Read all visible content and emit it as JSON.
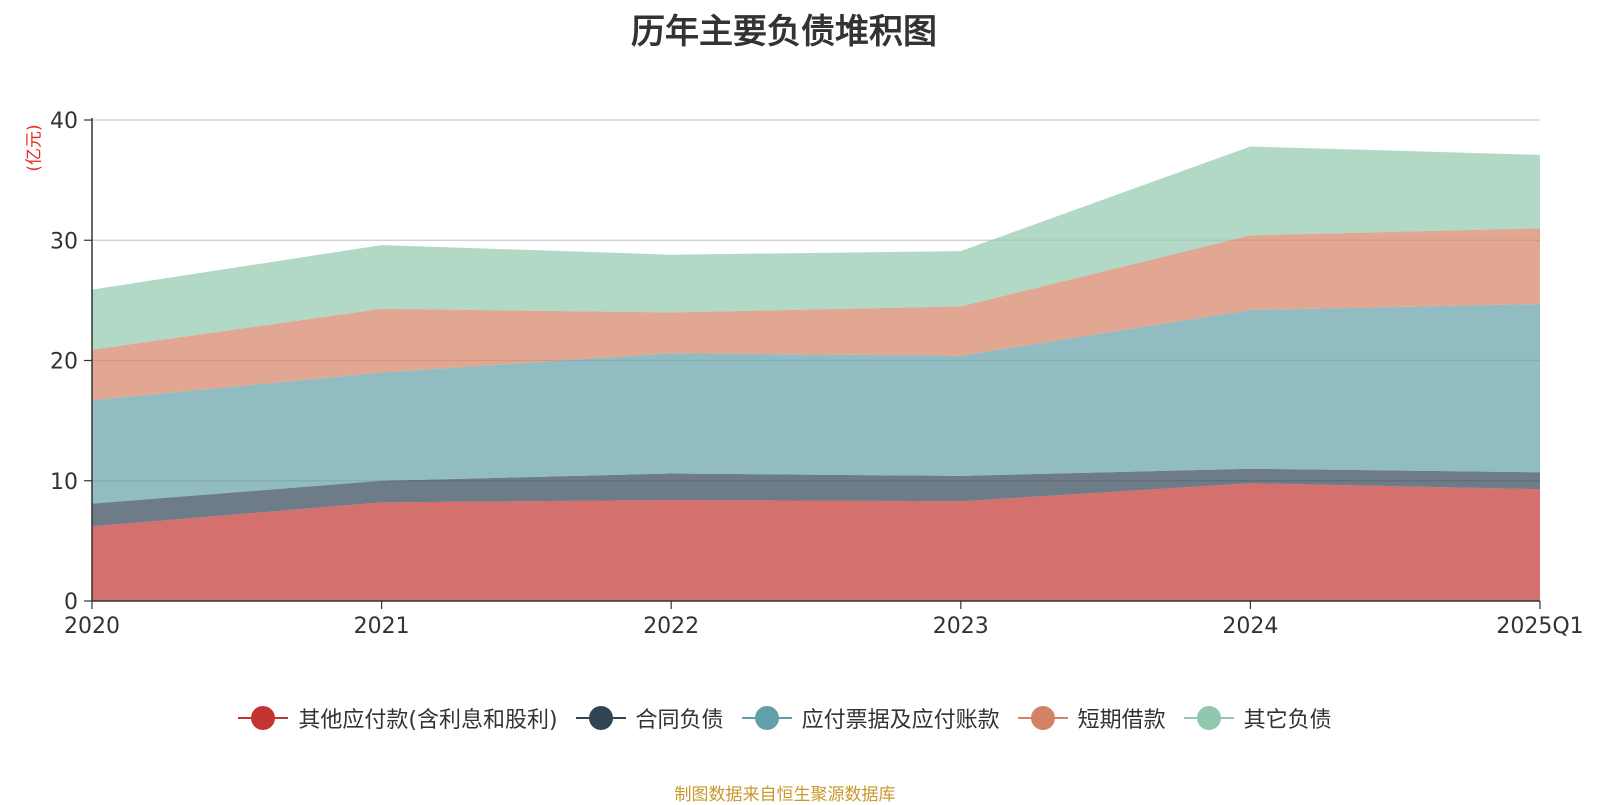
{
  "title": "历年主要负债堆积图",
  "unit_label": "(亿元)",
  "footer": "制图数据来自恒生聚源数据库",
  "colors": {
    "other_payables": "#c23531",
    "contract_liabilities": "#2f4554",
    "notes_accounts_payable": "#61a0a8",
    "short_term_loans": "#d48265",
    "other_liabilities": "#91c7ae"
  },
  "legend": [
    {
      "label": "其他应付款(含利息和股利)",
      "color": "#c23531"
    },
    {
      "label": "合同负债",
      "color": "#2f4554"
    },
    {
      "label": "应付票据及应付账款",
      "color": "#61a0a8"
    },
    {
      "label": "短期借款",
      "color": "#d48265"
    },
    {
      "label": "其它负债",
      "color": "#91c7ae"
    }
  ],
  "chart_data": {
    "type": "area",
    "stacked": true,
    "title": "历年主要负债堆积图",
    "ylabel": "(亿元)",
    "categories": [
      "2020",
      "2021",
      "2022",
      "2023",
      "2024",
      "2025Q1"
    ],
    "ylim": [
      0,
      40
    ],
    "yticks": [
      0,
      10,
      20,
      30,
      40
    ],
    "grid": true,
    "legend_position": "bottom",
    "series": [
      {
        "name": "其他应付款(含利息和股利)",
        "color": "#c23531",
        "values": [
          6.2,
          8.2,
          8.4,
          8.3,
          9.8,
          9.3
        ]
      },
      {
        "name": "合同负债",
        "color": "#2f4554",
        "values": [
          1.9,
          1.8,
          2.2,
          2.1,
          1.2,
          1.4
        ]
      },
      {
        "name": "应付票据及应付账款",
        "color": "#61a0a8",
        "values": [
          8.6,
          9.0,
          10.0,
          10.0,
          13.2,
          14.0
        ]
      },
      {
        "name": "短期借款",
        "color": "#d48265",
        "values": [
          4.2,
          5.3,
          3.4,
          4.1,
          6.2,
          6.3
        ]
      },
      {
        "name": "其它负债",
        "color": "#91c7ae",
        "values": [
          5.0,
          5.3,
          4.8,
          4.6,
          7.4,
          6.1
        ]
      }
    ]
  }
}
